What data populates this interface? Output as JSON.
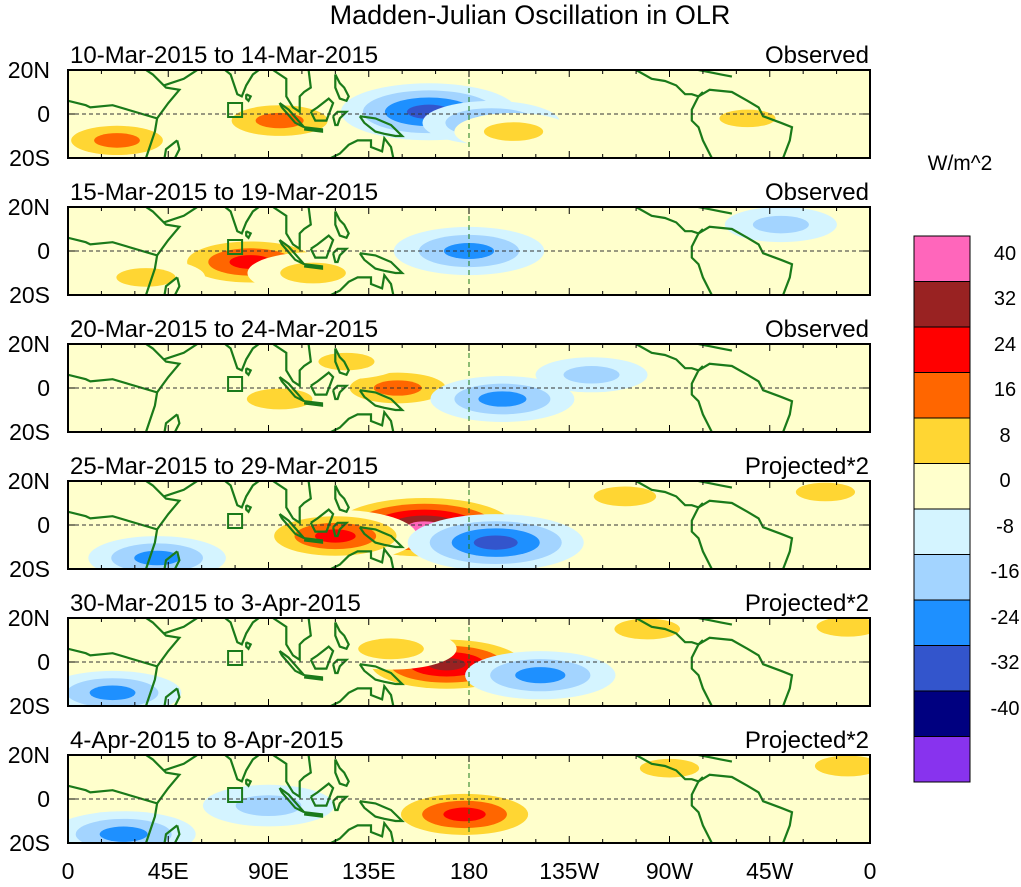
{
  "title": "Madden-Julian Oscillation in OLR",
  "units": "W/m^2",
  "chart_data": {
    "type": "heatmap",
    "title": "Madden-Julian Oscillation in OLR",
    "variable": "OLR anomaly",
    "units": "W/m^2",
    "x_axis": {
      "range": [
        0,
        360
      ],
      "ticks": [
        "0",
        "45E",
        "90E",
        "135E",
        "180",
        "135W",
        "90W",
        "45W",
        "0"
      ]
    },
    "y_axis": {
      "range": [
        -20,
        20
      ],
      "ticks": [
        "20N",
        "0",
        "20S"
      ]
    },
    "colorbar": {
      "levels": [
        -40,
        -32,
        -24,
        -16,
        -8,
        0,
        8,
        16,
        24,
        32,
        40
      ],
      "labels": [
        "40",
        "32",
        "24",
        "16",
        "8",
        "0",
        "-8",
        "-16",
        "-24",
        "-32",
        "-40"
      ],
      "colors": [
        "#ff66bb",
        "#992222",
        "#ff0000",
        "#ff6600",
        "#ffd633",
        "#ffffcc",
        "#d4f4ff",
        "#a3d4ff",
        "#1e90ff",
        "#3355cc",
        "#000080",
        "#8833ee"
      ]
    },
    "panels": [
      {
        "period": "10-Mar-2015 to 14-Mar-2015",
        "kind": "Observed",
        "anomalies": [
          {
            "lon": 95,
            "lat": -3,
            "value": 20
          },
          {
            "lon": 22,
            "lat": -12,
            "value": 18
          },
          {
            "lon": 162,
            "lat": 1,
            "value": -30
          },
          {
            "lon": 190,
            "lat": -4,
            "value": -18
          },
          {
            "lon": 200,
            "lat": -8,
            "value": 12
          },
          {
            "lon": 305,
            "lat": -2,
            "value": 10
          }
        ]
      },
      {
        "period": "15-Mar-2015 to 19-Mar-2015",
        "kind": "Observed",
        "anomalies": [
          {
            "lon": 82,
            "lat": -5,
            "value": 28
          },
          {
            "lon": 110,
            "lat": -10,
            "value": 16
          },
          {
            "lon": 180,
            "lat": 0,
            "value": -22
          },
          {
            "lon": 35,
            "lat": -12,
            "value": 12
          },
          {
            "lon": 320,
            "lat": 12,
            "value": -10
          }
        ]
      },
      {
        "period": "20-Mar-2015 to 24-Mar-2015",
        "kind": "Observed",
        "anomalies": [
          {
            "lon": 148,
            "lat": 0,
            "value": 20
          },
          {
            "lon": 95,
            "lat": -5,
            "value": 16
          },
          {
            "lon": 195,
            "lat": -5,
            "value": -20
          },
          {
            "lon": 235,
            "lat": 6,
            "value": -10
          },
          {
            "lon": 125,
            "lat": 12,
            "value": 10
          }
        ]
      },
      {
        "period": "25-Mar-2015 to 29-Mar-2015",
        "kind": "Projected*2",
        "anomalies": [
          {
            "lon": 160,
            "lat": -1,
            "value": 42
          },
          {
            "lon": 120,
            "lat": -5,
            "value": 26
          },
          {
            "lon": 192,
            "lat": -8,
            "value": -30
          },
          {
            "lon": 250,
            "lat": 13,
            "value": 14
          },
          {
            "lon": 40,
            "lat": -15,
            "value": -18
          },
          {
            "lon": 340,
            "lat": 15,
            "value": 12
          }
        ]
      },
      {
        "period": "30-Mar-2015 to 3-Apr-2015",
        "kind": "Projected*2",
        "anomalies": [
          {
            "lon": 170,
            "lat": -1,
            "value": 34
          },
          {
            "lon": 145,
            "lat": 6,
            "value": 16
          },
          {
            "lon": 212,
            "lat": -6,
            "value": -22
          },
          {
            "lon": 20,
            "lat": -14,
            "value": -18
          },
          {
            "lon": 260,
            "lat": 15,
            "value": 16
          },
          {
            "lon": 350,
            "lat": 16,
            "value": 14
          }
        ]
      },
      {
        "period": "4-Apr-2015 to 8-Apr-2015",
        "kind": "Projected*2",
        "anomalies": [
          {
            "lon": 178,
            "lat": -7,
            "value": 28
          },
          {
            "lon": 90,
            "lat": -3,
            "value": -16
          },
          {
            "lon": 25,
            "lat": -16,
            "value": -20
          },
          {
            "lon": 270,
            "lat": 14,
            "value": 12
          },
          {
            "lon": 350,
            "lat": 15,
            "value": 16
          }
        ]
      }
    ]
  }
}
